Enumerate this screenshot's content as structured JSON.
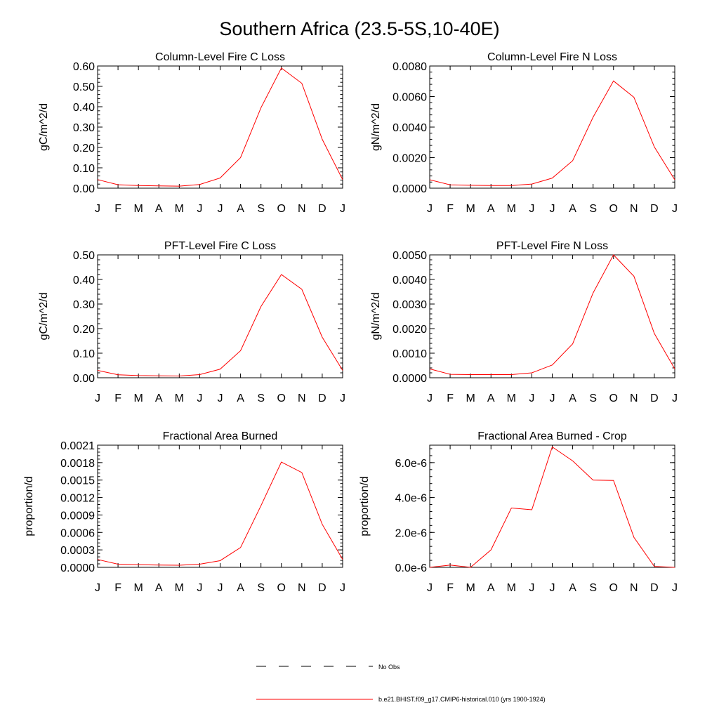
{
  "title": "Southern Africa (23.5-5S,10-40E)",
  "months": [
    "J",
    "F",
    "M",
    "A",
    "M",
    "J",
    "J",
    "A",
    "S",
    "O",
    "N",
    "D",
    "J"
  ],
  "colors": {
    "model_line": "#ff0000",
    "obs_line": "#000000",
    "axes": "#000000"
  },
  "legend": [
    {
      "label": "No Obs",
      "style": "dashed",
      "color": "#000000"
    },
    {
      "label": "b.e21.BHIST.f09_g17.CMIP6-historical.010 (yrs 1900-1924)",
      "style": "solid",
      "color": "#ff0000"
    }
  ],
  "chart_data": [
    {
      "type": "line",
      "title": "Column-Level Fire C Loss",
      "ylabel": "gC/m^2/d",
      "ylim": [
        0,
        0.6
      ],
      "yticks": [
        0,
        0.1,
        0.2,
        0.3,
        0.4,
        0.5,
        0.6
      ],
      "ytick_labels": [
        "0.00",
        "0.10",
        "0.20",
        "0.30",
        "0.40",
        "0.50",
        "0.60"
      ],
      "categories": [
        "J",
        "F",
        "M",
        "A",
        "M",
        "J",
        "J",
        "A",
        "S",
        "O",
        "N",
        "D",
        "J"
      ],
      "series": [
        {
          "values": [
            0.042,
            0.017,
            0.013,
            0.011,
            0.01,
            0.018,
            0.05,
            0.15,
            0.395,
            0.59,
            0.515,
            0.24,
            0.042
          ]
        }
      ]
    },
    {
      "type": "line",
      "title": "Column-Level Fire N Loss",
      "ylabel": "gN/m^2/d",
      "ylim": [
        0,
        0.008
      ],
      "yticks": [
        0,
        0.002,
        0.004,
        0.006,
        0.008
      ],
      "ytick_labels": [
        "0.0000",
        "0.0020",
        "0.0040",
        "0.0060",
        "0.0080"
      ],
      "categories": [
        "J",
        "F",
        "M",
        "A",
        "M",
        "J",
        "J",
        "A",
        "S",
        "O",
        "N",
        "D",
        "J"
      ],
      "series": [
        {
          "values": [
            0.00055,
            0.00022,
            0.00019,
            0.00017,
            0.00017,
            0.00027,
            0.00066,
            0.0018,
            0.00465,
            0.00702,
            0.00595,
            0.0027,
            0.00055
          ]
        }
      ]
    },
    {
      "type": "line",
      "title": "PFT-Level Fire C Loss",
      "ylabel": "gC/m^2/d",
      "ylim": [
        0,
        0.5
      ],
      "yticks": [
        0,
        0.1,
        0.2,
        0.3,
        0.4,
        0.5
      ],
      "ytick_labels": [
        "0.00",
        "0.10",
        "0.20",
        "0.30",
        "0.40",
        "0.50"
      ],
      "categories": [
        "J",
        "F",
        "M",
        "A",
        "M",
        "J",
        "J",
        "A",
        "S",
        "O",
        "N",
        "D",
        "J"
      ],
      "series": [
        {
          "values": [
            0.03,
            0.012,
            0.009,
            0.008,
            0.007,
            0.013,
            0.035,
            0.11,
            0.29,
            0.42,
            0.36,
            0.165,
            0.03
          ]
        }
      ]
    },
    {
      "type": "line",
      "title": "PFT-Level Fire N Loss",
      "ylabel": "gN/m^2/d",
      "ylim": [
        0,
        0.005
      ],
      "yticks": [
        0,
        0.001,
        0.002,
        0.003,
        0.004,
        0.005
      ],
      "ytick_labels": [
        "0.0000",
        "0.0010",
        "0.0020",
        "0.0030",
        "0.0040",
        "0.0050"
      ],
      "categories": [
        "J",
        "F",
        "M",
        "A",
        "M",
        "J",
        "J",
        "A",
        "S",
        "O",
        "N",
        "D",
        "J"
      ],
      "series": [
        {
          "values": [
            0.00036,
            0.00014,
            0.00013,
            0.00013,
            0.00013,
            0.0002,
            0.00052,
            0.00138,
            0.00345,
            0.005,
            0.00413,
            0.0018,
            0.00036
          ]
        }
      ]
    },
    {
      "type": "line",
      "title": "Fractional Area Burned",
      "ylabel": "proportion/d",
      "ylim": [
        0,
        0.0021
      ],
      "yticks": [
        0,
        0.0003,
        0.0006,
        0.0009,
        0.0012,
        0.0015,
        0.0018,
        0.0021
      ],
      "ytick_labels": [
        "0.0000",
        "0.0003",
        "0.0006",
        "0.0009",
        "0.0012",
        "0.0015",
        "0.0018",
        "0.0021"
      ],
      "categories": [
        "J",
        "F",
        "M",
        "A",
        "M",
        "J",
        "J",
        "A",
        "S",
        "O",
        "N",
        "D",
        "J"
      ],
      "series": [
        {
          "values": [
            0.000135,
            5.5e-05,
            4.5e-05,
            4e-05,
            3.6e-05,
            5.5e-05,
            0.000115,
            0.00034,
            0.00106,
            0.00181,
            0.00163,
            0.00074,
            0.000135
          ]
        }
      ]
    },
    {
      "type": "line",
      "title": "Fractional Area Burned - Crop",
      "ylabel": "proportion/d",
      "ylim": [
        0,
        7e-06
      ],
      "yticks": [
        0,
        2e-06,
        4e-06,
        6e-06
      ],
      "ytick_labels": [
        "0.0e-6",
        "2.0e-6",
        "4.0e-6",
        "6.0e-6"
      ],
      "categories": [
        "J",
        "F",
        "M",
        "A",
        "M",
        "J",
        "J",
        "A",
        "S",
        "O",
        "N",
        "D",
        "J"
      ],
      "series": [
        {
          "values": [
            0.0,
            1.3e-07,
            0.0,
            1e-06,
            3.4e-06,
            3.3e-06,
            6.9e-06,
            6.1e-06,
            5e-06,
            4.98e-06,
            1.72e-06,
            5e-08,
            0.0
          ]
        }
      ]
    }
  ]
}
